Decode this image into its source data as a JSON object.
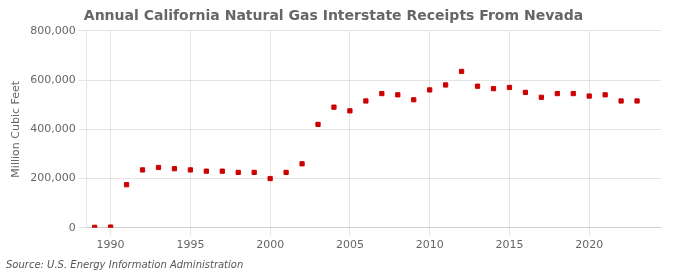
{
  "chart_data": {
    "type": "scatter",
    "title": "Annual California Natural Gas Interstate Receipts From Nevada",
    "ylabel": "Million Cubic Feet",
    "annotations": [
      "Source: U.S. Energy Information Administration"
    ],
    "x": [
      1989,
      1990,
      1991,
      1992,
      1993,
      1994,
      1995,
      1996,
      1997,
      1998,
      1999,
      2000,
      2001,
      2002,
      2003,
      2004,
      2005,
      2006,
      2007,
      2008,
      2009,
      2010,
      2011,
      2012,
      2013,
      2014,
      2015,
      2016,
      2017,
      2018,
      2019,
      2020,
      2021,
      2022,
      2023
    ],
    "values": [
      2000,
      3000,
      175000,
      235000,
      245000,
      240000,
      235000,
      230000,
      230000,
      225000,
      225000,
      200000,
      225000,
      260000,
      420000,
      490000,
      475000,
      515000,
      545000,
      540000,
      520000,
      560000,
      580000,
      635000,
      575000,
      565000,
      570000,
      550000,
      530000,
      545000,
      545000,
      535000,
      540000,
      515000,
      515000
    ],
    "color": "#cc0000",
    "marker": "square",
    "xlim": [
      1988.5,
      2024.5
    ],
    "xticks": [
      1990,
      1995,
      2000,
      2005,
      2010,
      2015,
      2020
    ],
    "ylim": [
      0,
      800000
    ],
    "yticks": [
      0,
      {
        "value": 200000,
        "label": "200,000"
      },
      {
        "value": 400000,
        "label": "400,000"
      },
      {
        "value": 600000,
        "label": "600,000"
      },
      {
        "value": 800000,
        "label": "800,000"
      }
    ],
    "grid": true
  }
}
